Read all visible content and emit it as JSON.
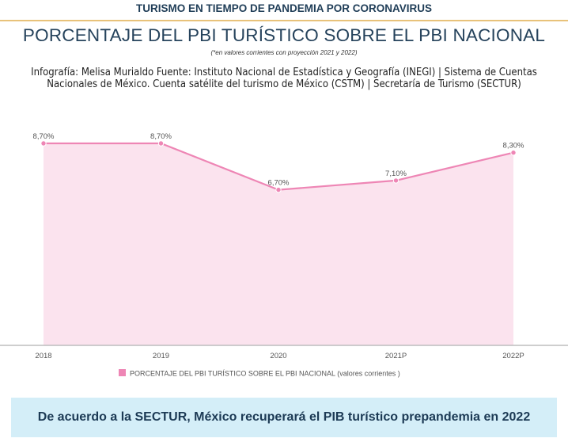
{
  "header": {
    "banner": "TURISMO EN TIEMPO DE PANDEMIA POR CORONAVIRUS"
  },
  "chart_data": {
    "type": "area",
    "title": "PORCENTAJE DEL PBI TURÍSTICO SOBRE EL PBI NACIONAL",
    "subtitle": "(*en valores corrientes con proyección 2021 y 2022)",
    "credits": "Infografía: Melisa Murialdo Fuente: Instituto Nacional de Estadística y Geografía (INEGI) | Sistema de Cuentas Nacionales de México. Cuenta satélite del turismo de México (CSTM) | Secretaría de Turismo (SECTUR)",
    "categories": [
      "2018",
      "2019",
      "2020",
      "2021P",
      "2022P"
    ],
    "series": [
      {
        "name": "PORCENTAJE DEL PBI TURÍSTICO SOBRE EL PBI NACIONAL (valores corrientes )",
        "values": [
          8.7,
          8.7,
          6.7,
          7.1,
          8.3
        ],
        "labels": [
          "8,70%",
          "8,70%",
          "6,70%",
          "7,10%",
          "8,30%"
        ]
      }
    ],
    "ylim": [
      0,
      8.7
    ],
    "grid": false,
    "legend": "bottom",
    "colors": {
      "line": "#ee86b5",
      "fill": "#fbe3ee",
      "axis": "#bdbdbd",
      "label": "#555555"
    }
  },
  "footer": {
    "text": "De acuerdo a la SECTUR, México recuperará el PIB turístico prepandemia en 2022"
  }
}
